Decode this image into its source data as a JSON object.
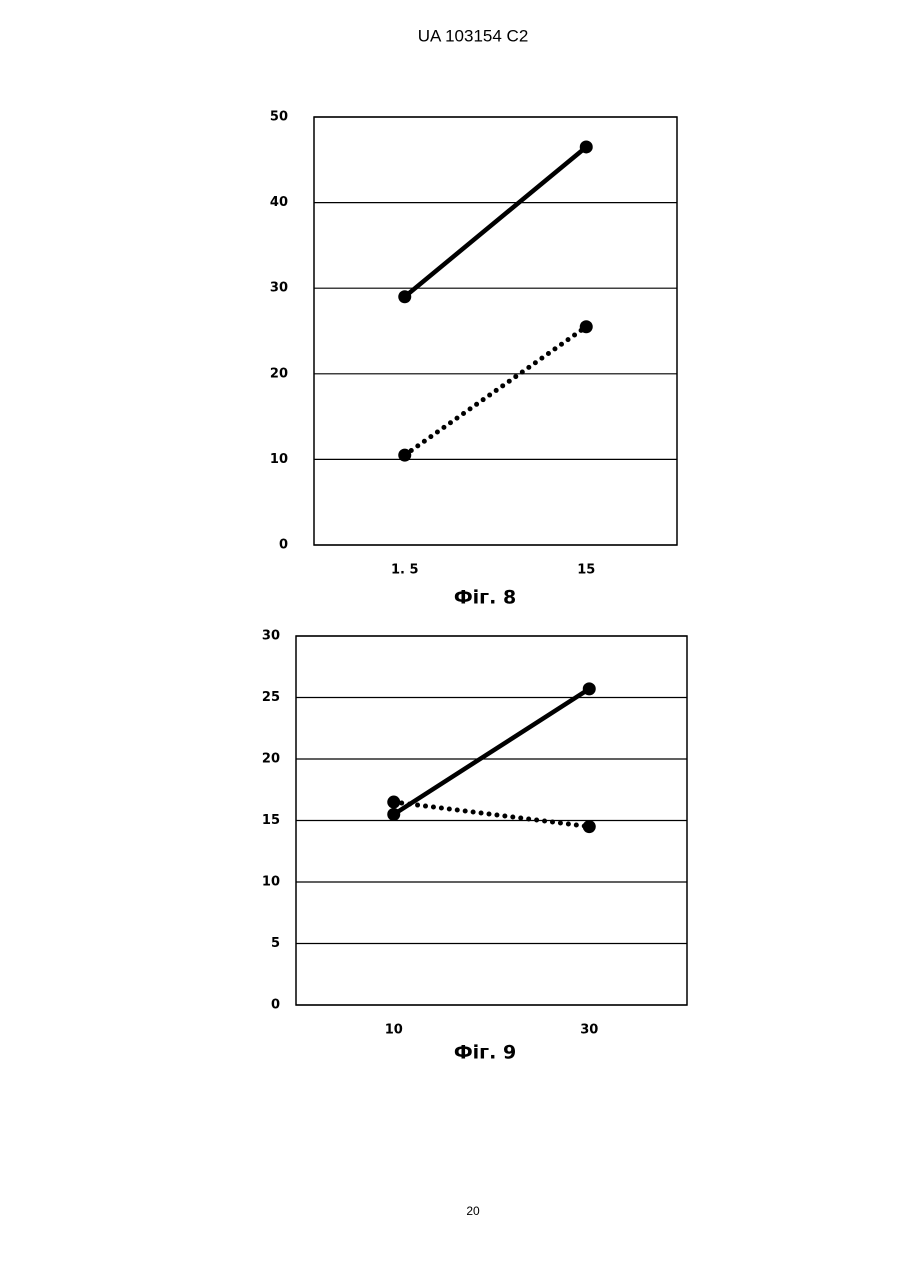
{
  "header": "UA   103154   C2",
  "page_number": "20",
  "chart_data": [
    {
      "type": "line",
      "caption": "Фіг. 8",
      "categories": [
        "1. 5",
        "15"
      ],
      "series": [
        {
          "color": "#000000",
          "style": "solid",
          "values": [
            29,
            46.5
          ]
        },
        {
          "color": "#000000",
          "style": "dotted",
          "values": [
            10.5,
            25.5
          ]
        }
      ],
      "ylim": [
        0,
        50
      ],
      "yticks": [
        0,
        10,
        20,
        30,
        40,
        50
      ],
      "grid": true
    },
    {
      "type": "line",
      "caption": "Фіг. 9",
      "categories": [
        "10",
        "30"
      ],
      "series": [
        {
          "color": "#000000",
          "style": "solid",
          "values": [
            15.5,
            25.7
          ]
        },
        {
          "color": "#000000",
          "style": "dotted",
          "values": [
            16.5,
            14.5
          ]
        }
      ],
      "ylim": [
        0,
        30
      ],
      "yticks": [
        0,
        5,
        10,
        15,
        20,
        25,
        30
      ],
      "grid": true
    }
  ]
}
